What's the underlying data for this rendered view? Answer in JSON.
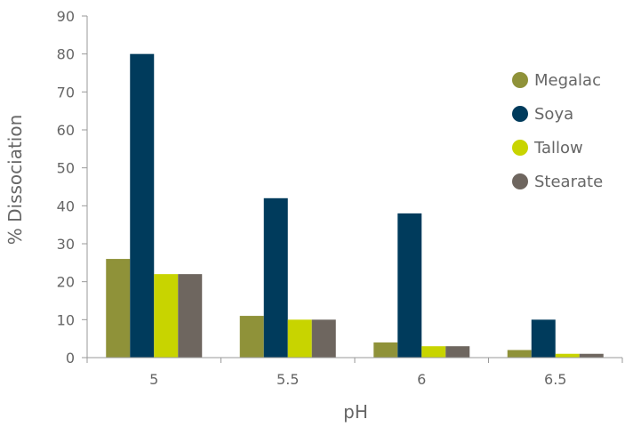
{
  "chart_data": {
    "type": "bar",
    "xlabel": "pH",
    "ylabel": "% Dissociation",
    "categories": [
      "5",
      "5.5",
      "6",
      "6.5"
    ],
    "ylim": [
      0,
      90
    ],
    "yticks": [
      "0",
      "10",
      "20",
      "30",
      "40",
      "50",
      "60",
      "70",
      "80",
      "90"
    ],
    "grid": false,
    "legend_position": "right",
    "series": [
      {
        "name": "Megalac",
        "color": "#8f9239",
        "values": [
          26,
          11,
          4,
          2
        ]
      },
      {
        "name": "Soya",
        "color": "#003b5c",
        "values": [
          80,
          42,
          38,
          10
        ]
      },
      {
        "name": "Tallow",
        "color": "#c8d400",
        "values": [
          22,
          10,
          3,
          1
        ]
      },
      {
        "name": "Stearate",
        "color": "#6e665f",
        "values": [
          22,
          10,
          3,
          1
        ]
      }
    ]
  }
}
